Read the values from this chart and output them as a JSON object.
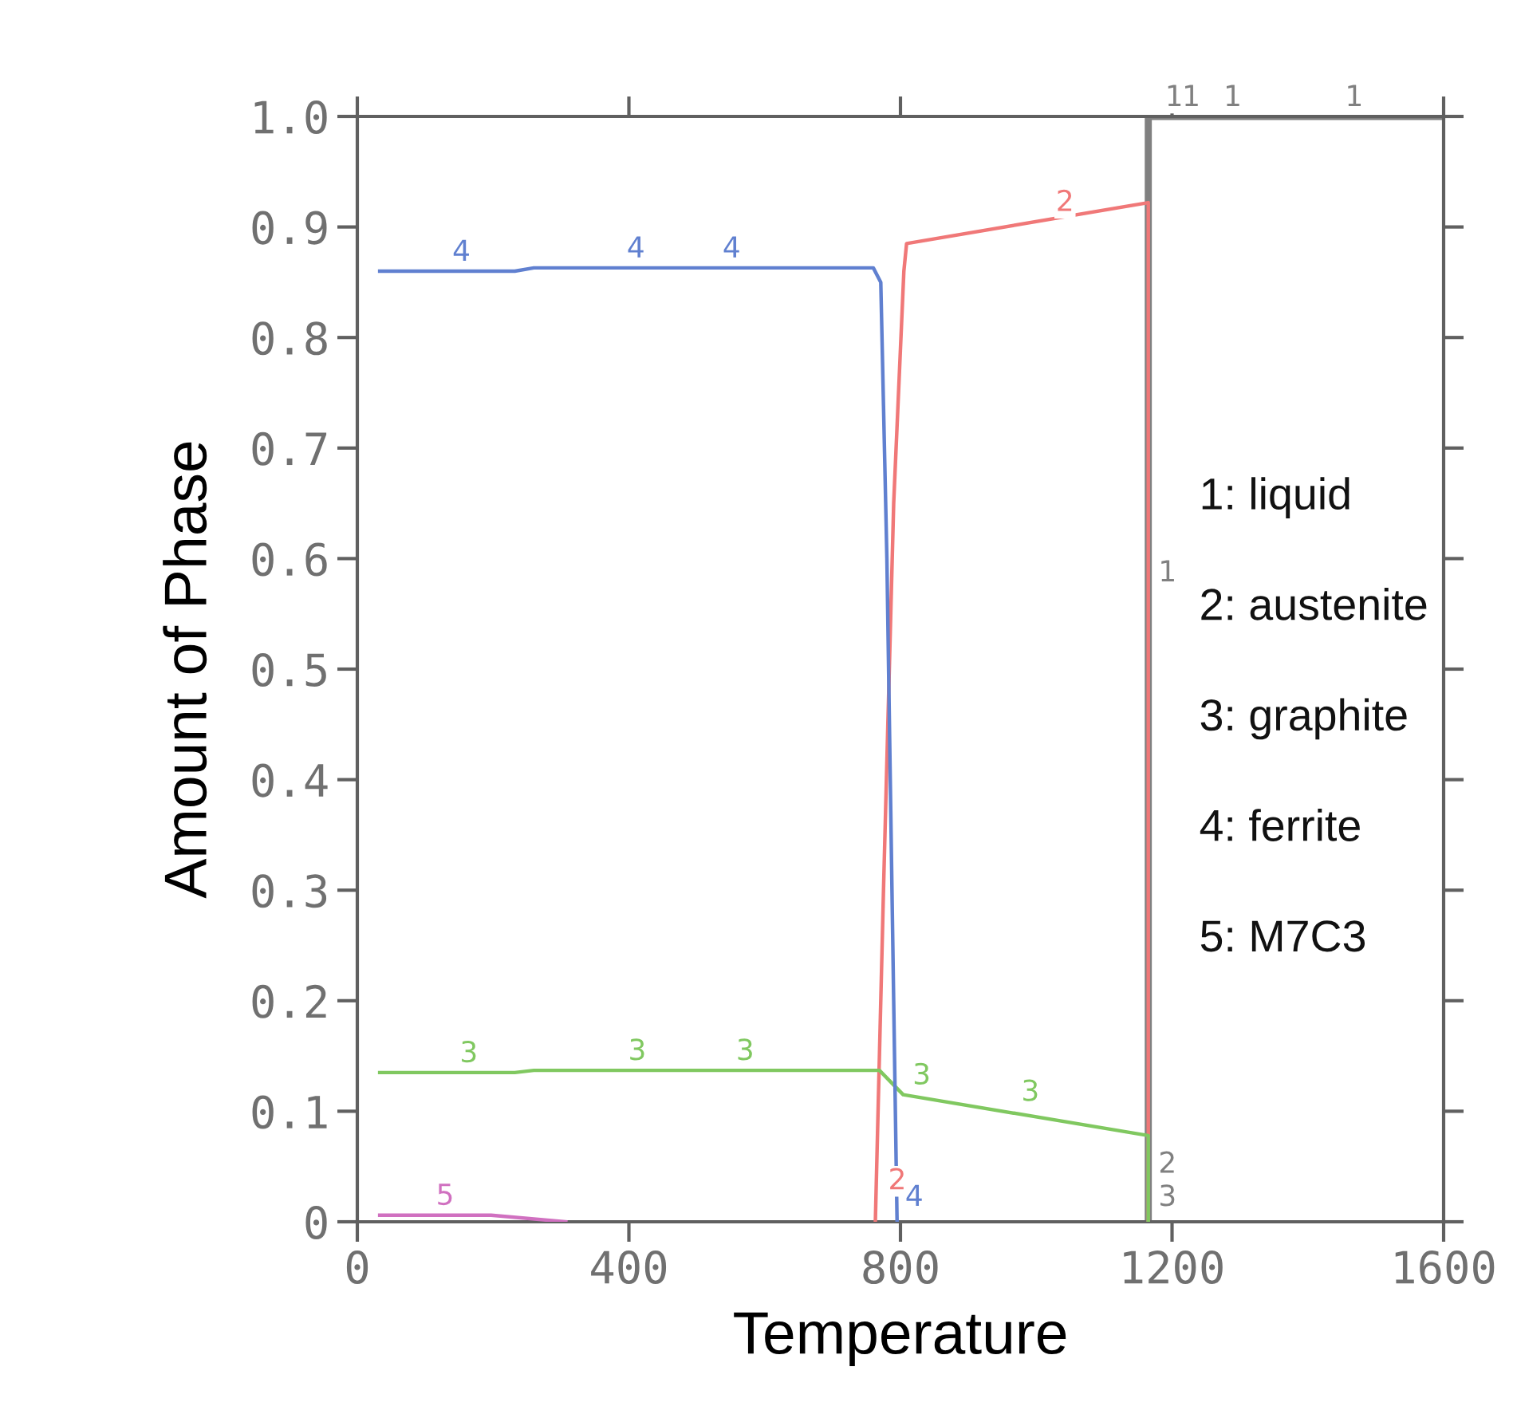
{
  "chart_data": {
    "type": "line",
    "xlabel": "Temperature",
    "ylabel": "Amount of Phase",
    "xlim": [
      0,
      1600
    ],
    "xticks": [
      0,
      400,
      800,
      1200,
      1600
    ],
    "ylim": [
      0,
      1.0
    ],
    "yticks": [
      {
        "value": 0,
        "label": "0"
      },
      {
        "value": 0.1,
        "label": "0.1"
      },
      {
        "value": 0.2,
        "label": "0.2"
      },
      {
        "value": 0.3,
        "label": "0.3"
      },
      {
        "value": 0.4,
        "label": "0.4"
      },
      {
        "value": 0.5,
        "label": "0.5"
      },
      {
        "value": 0.6,
        "label": "0.6"
      },
      {
        "value": 0.7,
        "label": "0.7"
      },
      {
        "value": 0.8,
        "label": "0.8"
      },
      {
        "value": 0.9,
        "label": "0.9"
      },
      {
        "value": 1.0,
        "label": "1.0"
      }
    ],
    "grid": false,
    "marker": "none",
    "line_style": "solid",
    "series": [
      {
        "color": "#808080",
        "x": [
          1165,
          1165,
          1600
        ],
        "values": [
          0,
          1.0,
          1.0
        ]
      },
      {
        "color": "#f07878",
        "x": [
          763,
          775,
          790,
          805,
          809,
          1165,
          1165
        ],
        "values": [
          0,
          0.3,
          0.65,
          0.86,
          0.885,
          0.922,
          0
        ]
      },
      {
        "color": "#80c860",
        "x": [
          33,
          232,
          260,
          769,
          804,
          1165,
          1165
        ],
        "values": [
          0.135,
          0.135,
          0.137,
          0.137,
          0.115,
          0.078,
          0
        ]
      },
      {
        "color": "#6080d0",
        "x": [
          33,
          232,
          260,
          760,
          771,
          780,
          790,
          795
        ],
        "values": [
          0.86,
          0.86,
          0.863,
          0.863,
          0.85,
          0.6,
          0.2,
          0
        ]
      },
      {
        "color": "#d070c0",
        "x": [
          33,
          197,
          307
        ],
        "values": [
          0.006,
          0.006,
          0
        ]
      }
    ],
    "annotations": [
      {
        "text": "1",
        "x": 1180,
        "y": 1.0
      },
      {
        "text": "1",
        "x": 1205,
        "y": 1.0
      },
      {
        "text": "1",
        "x": 1266,
        "y": 1.0
      },
      {
        "text": "1",
        "x": 1445,
        "y": 1.0
      },
      {
        "text": "1",
        "x": 1170,
        "y": 0.57
      },
      {
        "text": "2",
        "x": 1019,
        "y": 0.905
      },
      {
        "text": "2",
        "x": 772,
        "y": 0.02
      },
      {
        "text": "2",
        "x": 1170,
        "y": 0.035
      },
      {
        "text": "3",
        "x": 141,
        "y": 0.135
      },
      {
        "text": "3",
        "x": 389,
        "y": 0.137
      },
      {
        "text": "3",
        "x": 548,
        "y": 0.137
      },
      {
        "text": "3",
        "x": 808,
        "y": 0.115
      },
      {
        "text": "3",
        "x": 968,
        "y": 0.1
      },
      {
        "text": "3",
        "x": 1170,
        "y": 0.005
      },
      {
        "text": "4",
        "x": 130,
        "y": 0.86
      },
      {
        "text": "4",
        "x": 387,
        "y": 0.863
      },
      {
        "text": "4",
        "x": 528,
        "y": 0.863
      },
      {
        "text": "4",
        "x": 797,
        "y": 0.005
      },
      {
        "text": "5",
        "x": 106,
        "y": 0.006
      },
      "1: liquid",
      "2: austenite",
      "3: graphite",
      "4: ferrite",
      "5: M7C3"
    ]
  }
}
